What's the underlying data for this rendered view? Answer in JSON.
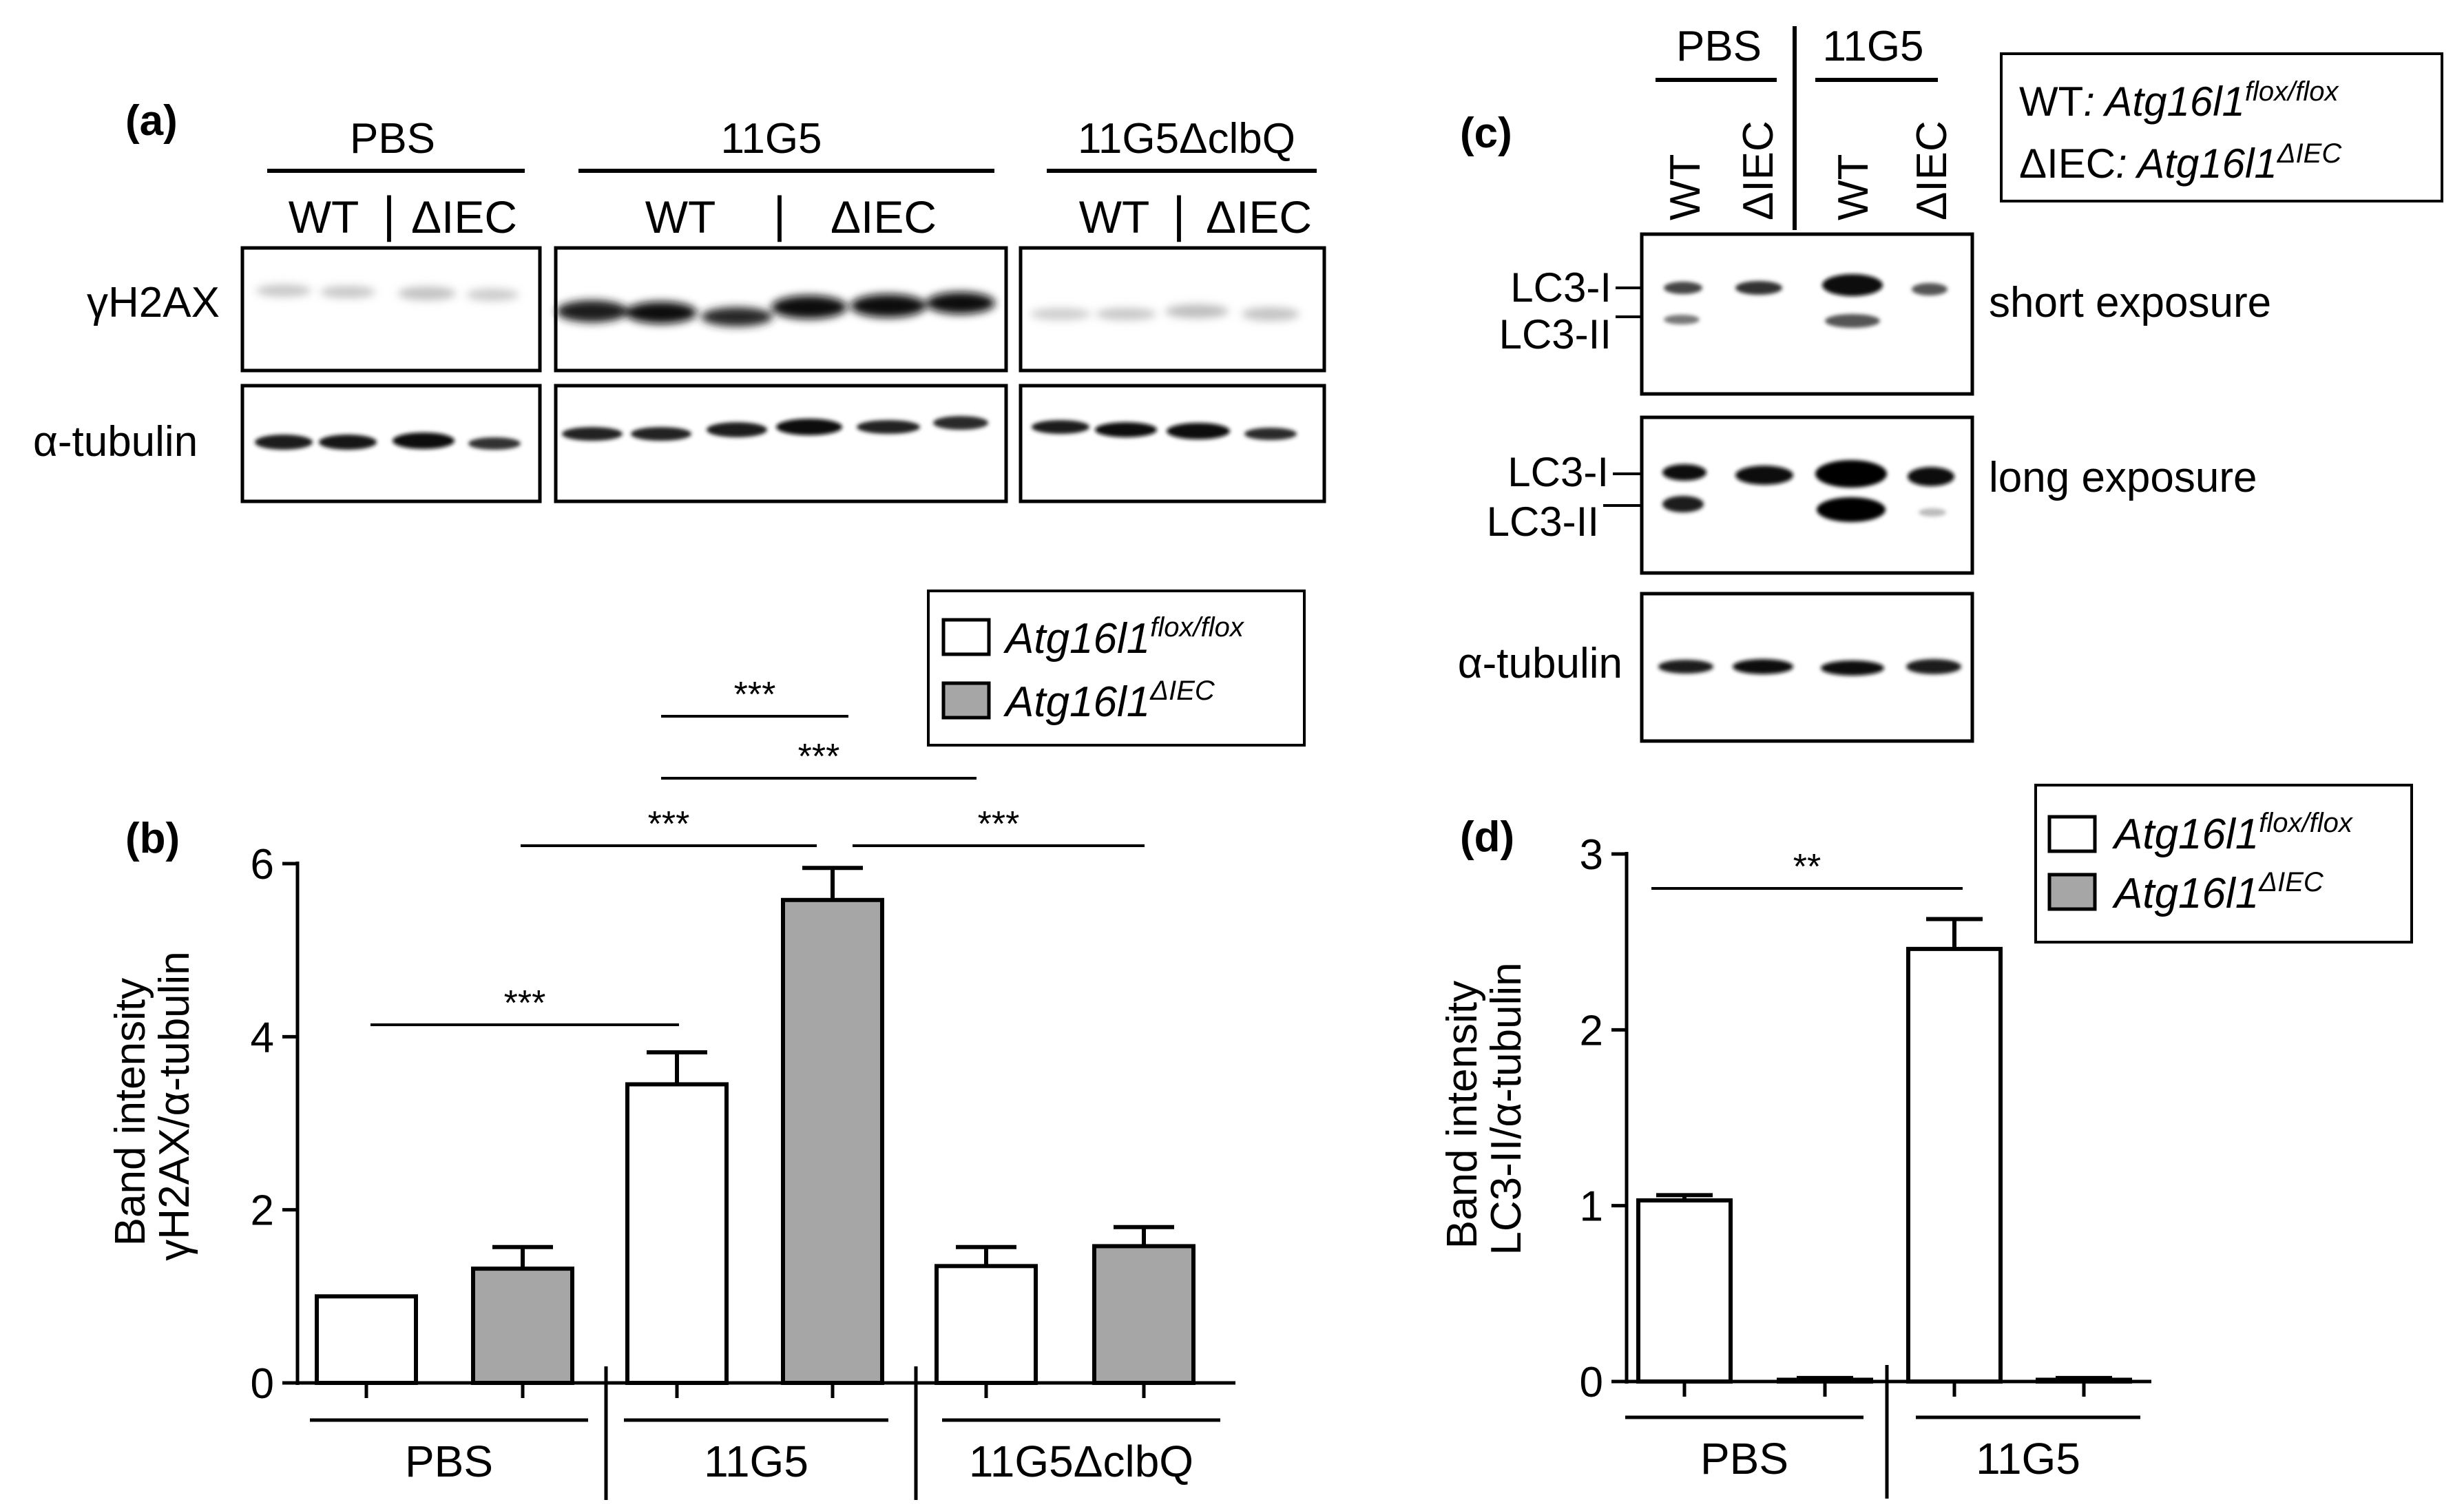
{
  "panels": {
    "a": {
      "label": "(a)",
      "groups": [
        "PBS",
        "11G5",
        "11G5ΔclbQ"
      ],
      "sublabels": {
        "wt": "WT",
        "iec": "ΔIEC",
        "sep": "|"
      },
      "rows": [
        "γH2AX",
        "α-tubulin"
      ]
    },
    "b": {
      "label": "(b)",
      "ylabel_line1": "Band intensity",
      "ylabel_line2": "γH2AX/α-tubulin",
      "sig": [
        "***",
        "***",
        "***",
        "***",
        "***"
      ],
      "legend": {
        "flox": {
          "base": "Atg16l1",
          "sup": "flox/flox"
        },
        "iec": {
          "base": "Atg16l1",
          "sup": "ΔIEC"
        }
      }
    },
    "c": {
      "label": "(c)",
      "groups": [
        "PBS",
        "11G5"
      ],
      "lanes": [
        "WT",
        "ΔIEC",
        "WT",
        "ΔIEC"
      ],
      "band_labels": {
        "lc3i": "LC3-I",
        "lc3ii": "LC3-II",
        "tubulin": "α-tubulin"
      },
      "exposures": [
        "short exposure",
        "long exposure"
      ],
      "key": {
        "wt_prefix": "WT",
        "wt_base": ": Atg16l1",
        "wt_sup": "flox/flox",
        "iec_prefix": "ΔIEC",
        "iec_base": ":  Atg16l1",
        "iec_sup": "ΔIEC"
      }
    },
    "d": {
      "label": "(d)",
      "ylabel_line1": "Band intensity",
      "ylabel_line2": "LC3-II/α-tubulin",
      "sig": [
        "**"
      ],
      "legend": {
        "flox": {
          "base": "Atg16l1",
          "sup": "flox/flox"
        },
        "iec": {
          "base": "Atg16l1",
          "sup": "ΔIEC"
        }
      }
    }
  },
  "colors": {
    "white_bar": "#ffffff",
    "grey_bar": "#a6a6a6",
    "axis": "#000000"
  },
  "chart_data": [
    {
      "type": "bar",
      "panel": "b",
      "categories": [
        "PBS",
        "11G5",
        "11G5ΔclbQ"
      ],
      "series": [
        {
          "name": "Atg16l1flox/flox",
          "values": [
            1.0,
            3.45,
            1.35
          ],
          "errors": [
            0.0,
            0.37,
            0.22
          ]
        },
        {
          "name": "Atg16l1ΔIEC",
          "values": [
            1.32,
            5.58,
            1.58
          ],
          "errors": [
            0.25,
            0.37,
            0.22
          ]
        }
      ],
      "ylim": [
        0,
        6
      ],
      "yticks": [
        "0",
        "2",
        "4",
        "6"
      ],
      "legend": "top-right"
    },
    {
      "type": "bar",
      "panel": "d",
      "categories": [
        "PBS",
        "11G5"
      ],
      "series": [
        {
          "name": "Atg16l1flox/flox",
          "values": [
            1.03,
            2.46
          ],
          "errors": [
            0.03,
            0.17
          ]
        },
        {
          "name": "Atg16l1ΔIEC",
          "values": [
            0.01,
            0.01
          ],
          "errors": [
            0.01,
            0.01
          ]
        }
      ],
      "ylim": [
        0,
        3
      ],
      "yticks": [
        "0",
        "1",
        "2",
        "3"
      ],
      "legend": "top-right"
    }
  ]
}
